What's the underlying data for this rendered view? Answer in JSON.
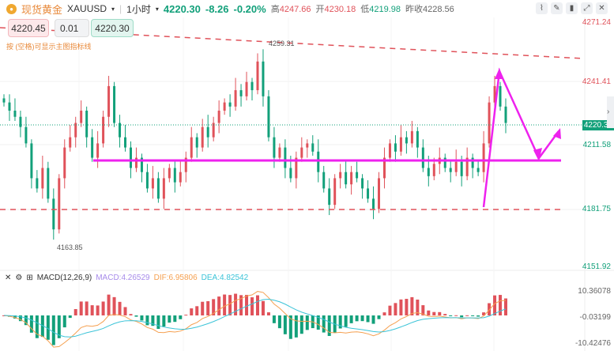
{
  "header": {
    "name": "现货黄金",
    "symbol": "XAUUSD",
    "timeframe": "1小时",
    "price": "4220.30",
    "change": "-8.26",
    "change_pct": "-0.20%",
    "high_label": "高",
    "high": "4247.66",
    "open_label": "开",
    "open": "4230.18",
    "low_label": "低",
    "low": "4219.98",
    "prev_label": "昨收",
    "prev": "4228.56"
  },
  "order": {
    "sell": "4220.45",
    "qty": "0.01",
    "buy": "4220.30"
  },
  "hint": "按 (空格)可显示主图指标线",
  "annotations": {
    "high": "4259.31",
    "low": "4163.85"
  },
  "axis": {
    "labels": [
      "4271.24",
      "4241.41",
      "4211.58",
      "4181.75",
      "4151.92"
    ],
    "current": "4220.30",
    "macd": [
      "10.36078",
      "-0.03199",
      "-10.42476"
    ]
  },
  "macd": {
    "name": "MACD(12,26,9)",
    "macd": "MACD:4.26529",
    "dif": "DIF:6.95806",
    "dea": "DEA:4.82542"
  },
  "colors": {
    "up": "#e0525a",
    "down": "#12a07a",
    "draw": "#ee22ee",
    "dif": "#f5a050",
    "dea": "#3cc4d8"
  },
  "chart_data": {
    "type": "candlestick",
    "ylim": [
      4151.92,
      4271.24
    ],
    "closes": [
      4232,
      4228,
      4225,
      4220,
      4212,
      4195,
      4190,
      4200,
      4185,
      4170,
      4195,
      4210,
      4215,
      4222,
      4228,
      4215,
      4205,
      4212,
      4225,
      4240,
      4222,
      4215,
      4210,
      4200,
      4205,
      4198,
      4190,
      4195,
      4185,
      4195,
      4200,
      4193,
      4198,
      4205,
      4215,
      4210,
      4220,
      4215,
      4222,
      4228,
      4232,
      4230,
      4238,
      4235,
      4242,
      4238,
      4252,
      4235,
      4215,
      4205,
      4210,
      4200,
      4195,
      4205,
      4210,
      4212,
      4208,
      4198,
      4190,
      4182,
      4195,
      4198,
      4192,
      4198,
      4195,
      4190,
      4185,
      4180,
      4195,
      4205,
      4212,
      4208,
      4215,
      4212,
      4218,
      4210,
      4200,
      4196,
      4202,
      4205,
      4200,
      4198,
      4203,
      4196,
      4205,
      4200,
      4198,
      4212,
      4232,
      4240,
      4230,
      4222
    ]
  }
}
